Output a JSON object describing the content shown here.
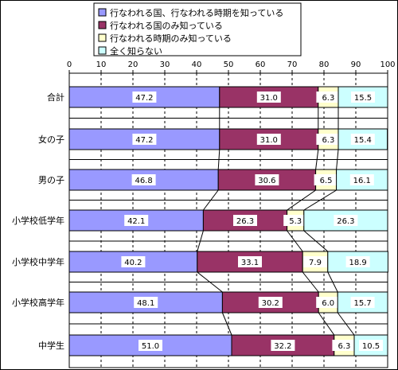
{
  "chart_data": {
    "type": "bar",
    "orientation": "horizontal",
    "stacked": true,
    "normalized": true,
    "xlim": [
      0,
      100
    ],
    "x_ticks": [
      "0",
      "10",
      "20",
      "30",
      "40",
      "50",
      "60",
      "70",
      "80",
      "90",
      "100"
    ],
    "grid": true,
    "legend_position": "top",
    "categories": [
      "合計",
      "女の子",
      "男の子",
      "小学校低学年",
      "小学校中学年",
      "小学校高学年",
      "中学生"
    ],
    "series": [
      {
        "name": "行なわれる国、行なわれる時期を知っている",
        "color": "#9999ff",
        "values": [
          47.2,
          47.2,
          46.8,
          42.1,
          40.2,
          48.1,
          51.0
        ],
        "labels": [
          "47.2",
          "47.2",
          "46.8",
          "42.1",
          "40.2",
          "48.1",
          "51.0"
        ]
      },
      {
        "name": "行なわれる国のみ知っている",
        "color": "#993366",
        "values": [
          31.0,
          31.0,
          30.6,
          26.3,
          33.1,
          30.2,
          32.2
        ],
        "labels": [
          "31.0",
          "31.0",
          "30.6",
          "26.3",
          "33.1",
          "30.2",
          "32.2"
        ]
      },
      {
        "name": "行なわれる時期のみ知っている",
        "color": "#ffffcc",
        "values": [
          6.3,
          6.3,
          6.5,
          5.3,
          7.9,
          6.0,
          6.3
        ],
        "labels": [
          "6.3",
          "6.3",
          "6.5",
          "5.3",
          "7.9",
          "6.0",
          "6.3"
        ]
      },
      {
        "name": "全く知らない",
        "color": "#ccffff",
        "values": [
          15.5,
          15.4,
          16.1,
          26.3,
          18.9,
          15.7,
          10.5
        ],
        "labels": [
          "15.5",
          "15.4",
          "16.1",
          "26.3",
          "18.9",
          "15.7",
          "10.5"
        ]
      }
    ]
  }
}
